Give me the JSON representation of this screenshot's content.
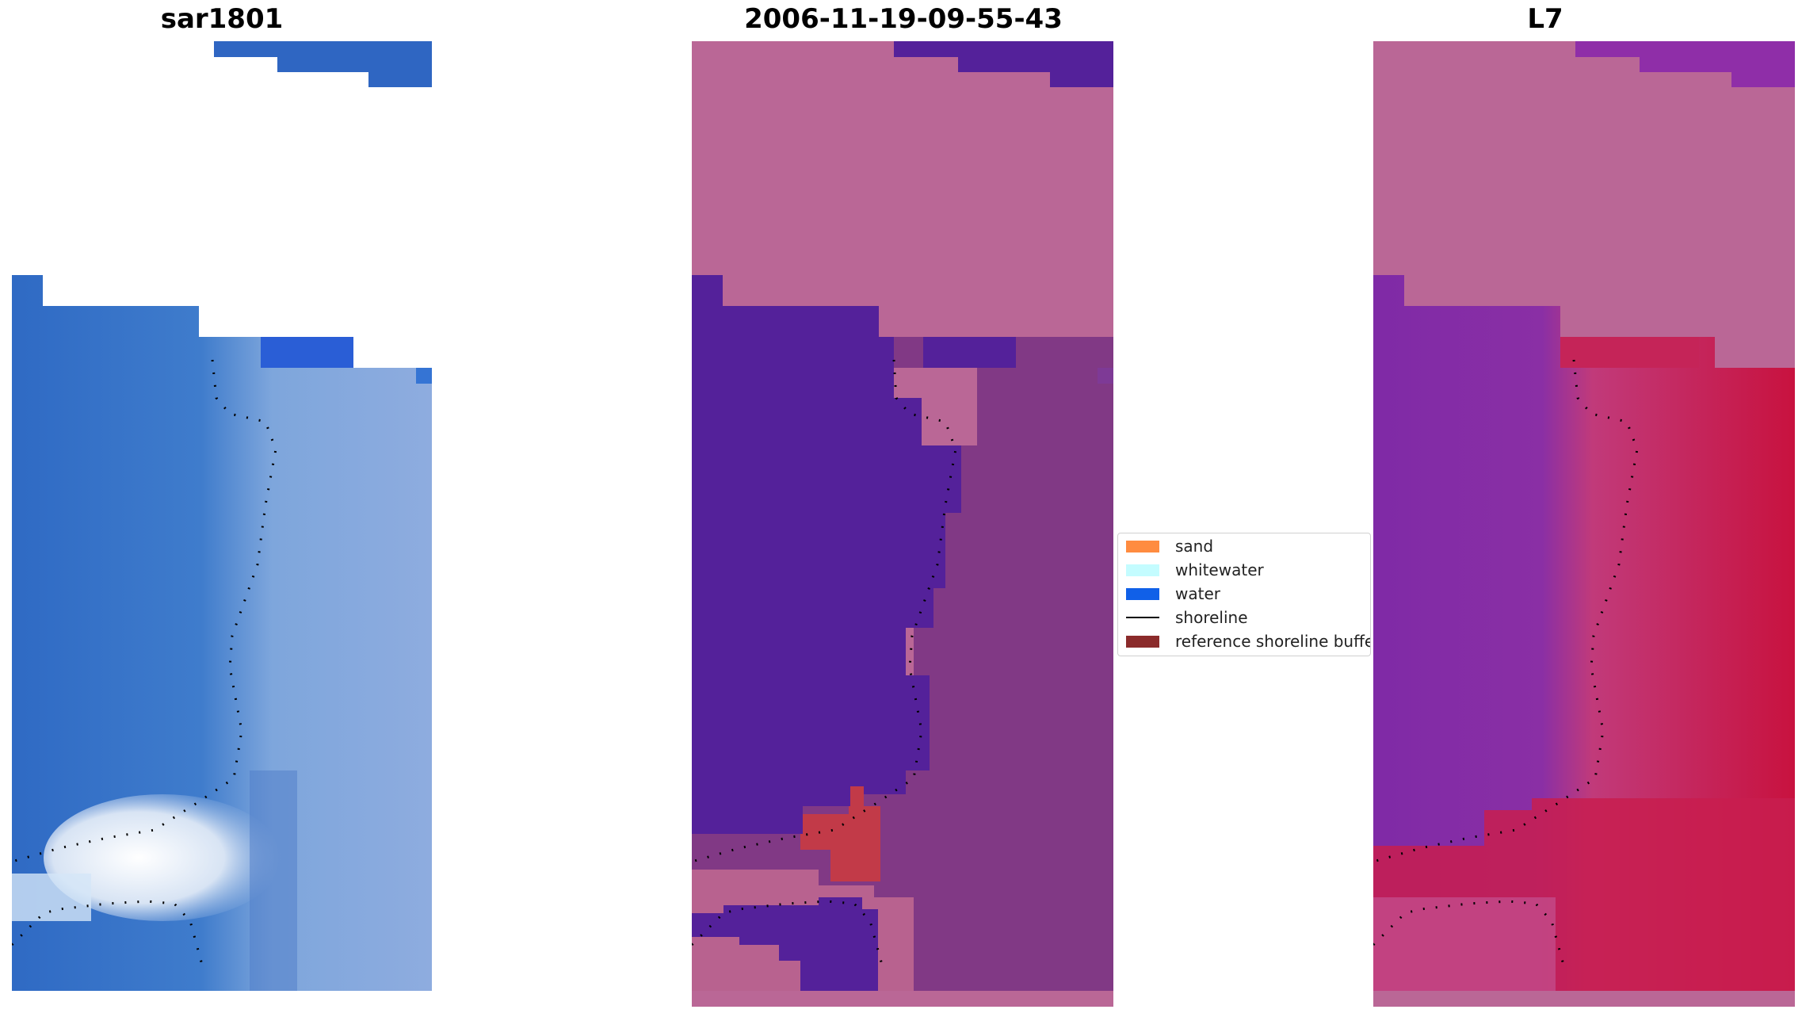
{
  "panels": [
    {
      "title": "sar1801"
    },
    {
      "title": "2006-11-19-09-55-43"
    },
    {
      "title": "L7"
    }
  ],
  "legend": {
    "items": [
      {
        "label": "sand",
        "color": "#ff8c40"
      },
      {
        "label": "whitewater",
        "color": "#c4fcff"
      },
      {
        "label": "water",
        "color": "#1060e8"
      },
      {
        "label": "shoreline",
        "color": "#000000"
      },
      {
        "label": "reference shoreline buffer",
        "color": "#8b2b2b"
      }
    ]
  },
  "colors": {
    "sar_water": "#3a72c8",
    "sar_land": "#8aa8e0",
    "class_water": "#54219a",
    "class_nodata": "#ba6796",
    "class_land": "#8a3f8a",
    "class_red": "#c23a48",
    "l7_water": "#7b27a8",
    "l7_land": "#c81b4f",
    "l7_nodata": "#ba6796"
  }
}
